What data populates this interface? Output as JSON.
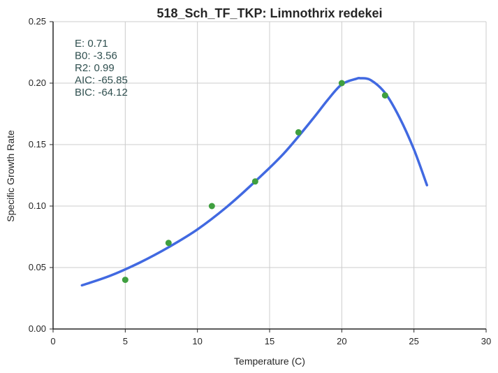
{
  "chart_data": {
    "type": "scatter",
    "title": "518_Sch_TF_TKP: Limnothrix redekei",
    "xlabel": "Temperature (C)",
    "ylabel": "Specific Growth Rate",
    "xlim": [
      0,
      30
    ],
    "ylim": [
      0,
      0.25
    ],
    "xticks": [
      "0",
      "5",
      "10",
      "15",
      "20",
      "25",
      "30"
    ],
    "yticks": [
      "0.00",
      "0.05",
      "0.10",
      "0.15",
      "0.20",
      "0.25"
    ],
    "grid": true,
    "colors": {
      "points": "#3f9f3f",
      "curve": "#4169e1",
      "annotation": "#2f4f4f",
      "grid": "#cccccc",
      "axis": "#262626"
    },
    "points": {
      "x": [
        5,
        8,
        11,
        14,
        17,
        20,
        23
      ],
      "y": [
        0.04,
        0.07,
        0.1,
        0.12,
        0.16,
        0.2,
        0.19
      ]
    },
    "fit_curve": {
      "x": [
        2,
        4,
        6,
        8,
        10,
        12,
        14,
        16,
        18,
        19,
        20,
        21,
        21.3,
        22,
        23,
        24,
        25,
        25.9
      ],
      "y": [
        0.0355,
        0.0435,
        0.054,
        0.0665,
        0.081,
        0.099,
        0.12,
        0.143,
        0.171,
        0.186,
        0.199,
        0.2035,
        0.204,
        0.2025,
        0.192,
        0.172,
        0.146,
        0.117
      ]
    },
    "annotations": [
      "E:  0.71",
      "B0:  -3.56",
      "R2:  0.99",
      "AIC: -65.85",
      "BIC: -64.12"
    ]
  }
}
